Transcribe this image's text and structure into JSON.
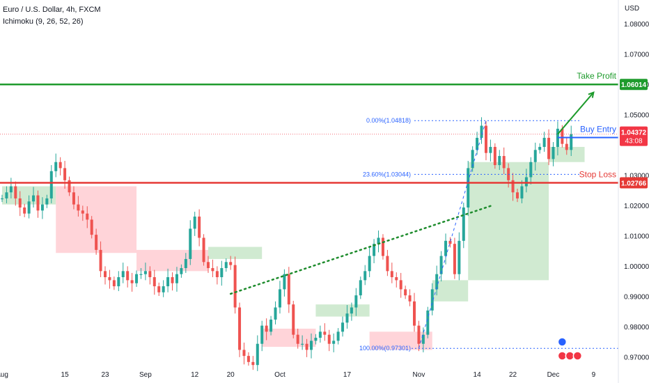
{
  "header": {
    "symbol_title": "Euro / U.S. Dollar, 4h, FXCM",
    "indicator": "Ichimoku (9, 26, 52, 26)",
    "currency": "USD"
  },
  "chart_data": {
    "type": "candlestick",
    "ylim": [
      0.968,
      1.088
    ],
    "price_ticks": [
      {
        "label": "1.08000",
        "value": 1.08
      },
      {
        "label": "1.07000",
        "value": 1.07
      },
      {
        "label": "1.06000",
        "value": 1.06
      },
      {
        "label": "1.05000",
        "value": 1.05
      },
      {
        "label": "1.03000",
        "value": 1.03
      },
      {
        "label": "1.02000",
        "value": 1.02
      },
      {
        "label": "1.01000",
        "value": 1.01
      },
      {
        "label": "1.00000",
        "value": 1.0
      },
      {
        "label": "0.99000",
        "value": 0.99
      },
      {
        "label": "0.98000",
        "value": 0.98
      },
      {
        "label": "0.97000",
        "value": 0.97
      }
    ],
    "time_ticks": [
      {
        "label": "Aug",
        "index": 0
      },
      {
        "label": "15",
        "index": 14
      },
      {
        "label": "23",
        "index": 23
      },
      {
        "label": "Sep",
        "index": 32
      },
      {
        "label": "12",
        "index": 43
      },
      {
        "label": "20",
        "index": 51
      },
      {
        "label": "Oct",
        "index": 62
      },
      {
        "label": "17",
        "index": 77
      },
      {
        "label": "Nov",
        "index": 93
      },
      {
        "label": "14",
        "index": 106
      },
      {
        "label": "22",
        "index": 114
      },
      {
        "label": "Dec",
        "index": 123
      },
      {
        "label": "9",
        "index": 132
      }
    ],
    "index_range": [
      0,
      138
    ],
    "closes": [
      1.0225,
      1.0245,
      1.0265,
      1.0225,
      1.0195,
      1.0175,
      1.0215,
      1.0235,
      1.0185,
      1.0205,
      1.0225,
      1.0315,
      1.0345,
      1.0325,
      1.0285,
      1.0245,
      1.0205,
      1.0185,
      1.0175,
      1.0155,
      1.0105,
      1.0055,
      0.9985,
      0.9965,
      0.9955,
      0.9935,
      0.9965,
      0.9985,
      0.9955,
      0.9945,
      0.9975,
      0.9975,
      0.9985,
      0.9965,
      0.9935,
      0.9915,
      0.9935,
      0.9965,
      0.9945,
      0.9975,
      0.9995,
      1.0025,
      1.0125,
      1.0165,
      1.0095,
      1.0015,
      0.9995,
      0.9985,
      0.9965,
      0.9995,
      1.0015,
      1.0005,
      0.9865,
      0.9725,
      0.9705,
      0.9685,
      0.9675,
      0.9745,
      0.9805,
      0.9785,
      0.9825,
      0.9865,
      0.9925,
      0.9975,
      0.9875,
      0.9775,
      0.9745,
      0.9745,
      0.9725,
      0.9755,
      0.9765,
      0.9785,
      0.9775,
      0.9745,
      0.9755,
      0.9785,
      0.9815,
      0.9845,
      0.9865,
      0.9905,
      0.9955,
      0.9985,
      1.0035,
      1.0075,
      1.0095,
      1.0035,
      0.9985,
      0.9965,
      0.9955,
      0.9925,
      0.9905,
      0.9885,
      0.9805,
      0.9745,
      0.9775,
      0.9855,
      0.9925,
      0.9975,
      1.0035,
      1.0085,
      1.0075,
      0.9975,
      1.0085,
      1.0195,
      1.0325,
      1.0385,
      1.0425,
      1.0465,
      1.0375,
      1.0395,
      1.0335,
      1.0365,
      1.0325,
      1.0285,
      1.0245,
      1.0225,
      1.0265,
      1.0295,
      1.0345,
      1.0385,
      1.0395,
      1.0425,
      1.0355,
      1.0395,
      1.0455,
      1.0405,
      1.0385,
      1.0437
    ],
    "series": [
      {
        "name": "Take Profit",
        "value": 1.06014,
        "label": "1.06014",
        "color": "#1e9b2c"
      },
      {
        "name": "Buy Entry",
        "value": 1.04261,
        "label": "1.04261",
        "color": "#2962ff"
      },
      {
        "name": "Stop Loss",
        "value": 1.02766,
        "label": "1.02766",
        "color": "#e53935"
      }
    ],
    "last_price": {
      "value": 1.04372,
      "label": "1.04372",
      "countdown": "43:08",
      "color": "#f23645"
    },
    "fibonacci": [
      {
        "label": "0.00%(1.04818)",
        "value": 1.04818
      },
      {
        "label": "23.60%(1.03044)",
        "value": 1.03044
      },
      {
        "label": "100.00%(0.97301)",
        "value": 0.97301
      }
    ],
    "trendline": {
      "from": {
        "index": 51,
        "value": 0.991
      },
      "to": {
        "index": 109,
        "value": 1.02
      }
    },
    "ichimoku_cloud": [
      {
        "start": 0,
        "end": 12,
        "a": 1.0205,
        "b": 1.0265,
        "bull": true
      },
      {
        "start": 12,
        "end": 30,
        "a": 1.0265,
        "b": 1.0045,
        "bull": false
      },
      {
        "start": 30,
        "end": 46,
        "a": 1.0055,
        "b": 0.9985,
        "bull": false
      },
      {
        "start": 46,
        "end": 58,
        "a": 1.0065,
        "b": 1.0025,
        "bull": true
      },
      {
        "start": 58,
        "end": 70,
        "a": 0.9795,
        "b": 0.9735,
        "bull": false
      },
      {
        "start": 70,
        "end": 82,
        "a": 0.9835,
        "b": 0.9875,
        "bull": true
      },
      {
        "start": 82,
        "end": 96,
        "a": 0.9785,
        "b": 0.9725,
        "bull": false
      },
      {
        "start": 96,
        "end": 104,
        "a": 0.9955,
        "b": 0.9885,
        "bull": true
      },
      {
        "start": 104,
        "end": 122,
        "a": 1.0345,
        "b": 0.9955,
        "bull": true
      },
      {
        "start": 122,
        "end": 130,
        "a": 1.0395,
        "b": 1.0345,
        "bull": true
      }
    ]
  },
  "annotations": {
    "take_profit": "Take Profit",
    "buy_entry": "Buy Entry",
    "stop_loss": "Stop Loss"
  },
  "colors": {
    "bull": "#26a69a",
    "bear": "#ef5350",
    "cloud_bull": "#c8e6c9",
    "cloud_bear": "#ffcdd2",
    "take_profit": "#1e9b2c",
    "buy_entry": "#2962ff",
    "stop_loss": "#e53935",
    "fib": "#2962ff",
    "trend": "#1e8c2d"
  }
}
